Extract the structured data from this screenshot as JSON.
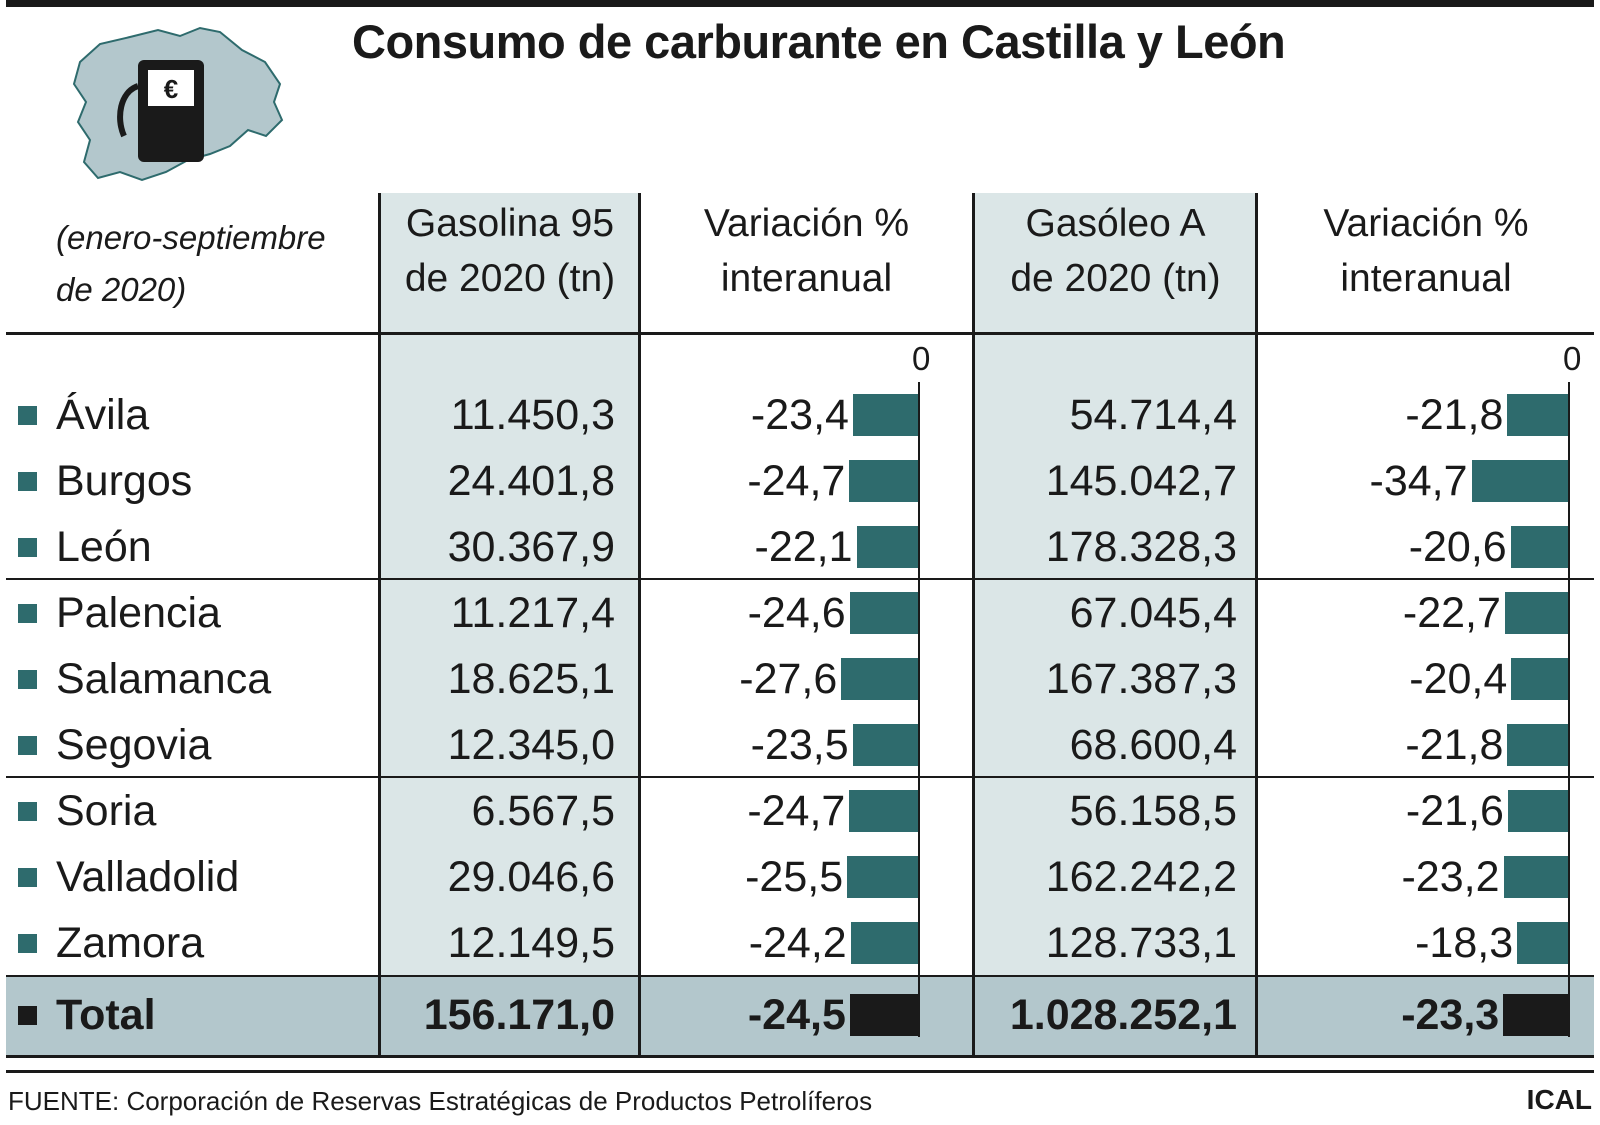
{
  "title": "Consumo de carburante en Castilla y León",
  "subtitle_line1": "(enero-septiembre",
  "subtitle_line2": "de 2020)",
  "logo": {
    "icon": "fuel-pump-icon",
    "symbol": "€"
  },
  "headers": {
    "gasolina_l1": "Gasolina 95",
    "gasolina_l2": "de 2020 (tn)",
    "var1_l1": "Variación %",
    "var1_l2": "interanual",
    "gasoleo_l1": "Gasóleo A",
    "gasoleo_l2": "de 2020 (tn)",
    "var2_l1": "Variación %",
    "var2_l2": "interanual"
  },
  "zero_label": "0",
  "colors": {
    "bar": "#2e6b6d",
    "total_bar": "#1a1a1a",
    "shade": "#dbe6e7",
    "total_band": "#b3c7cc"
  },
  "rows": [
    {
      "province": "Ávila",
      "gasolina": "11.450,3",
      "var_gasolina": "-23,4",
      "gasoleo": "54.714,4",
      "var_gasoleo": "-21,8"
    },
    {
      "province": "Burgos",
      "gasolina": "24.401,8",
      "var_gasolina": "-24,7",
      "gasoleo": "145.042,7",
      "var_gasoleo": "-34,7"
    },
    {
      "province": "León",
      "gasolina": "30.367,9",
      "var_gasolina": "-22,1",
      "gasoleo": "178.328,3",
      "var_gasoleo": "-20,6"
    },
    {
      "province": "Palencia",
      "gasolina": "11.217,4",
      "var_gasolina": "-24,6",
      "gasoleo": "67.045,4",
      "var_gasoleo": "-22,7"
    },
    {
      "province": "Salamanca",
      "gasolina": "18.625,1",
      "var_gasolina": "-27,6",
      "gasoleo": "167.387,3",
      "var_gasoleo": "-20,4"
    },
    {
      "province": "Segovia",
      "gasolina": "12.345,0",
      "var_gasolina": "-23,5",
      "gasoleo": "68.600,4",
      "var_gasoleo": "-21,8"
    },
    {
      "province": "Soria",
      "gasolina": "6.567,5",
      "var_gasolina": "-24,7",
      "gasoleo": "56.158,5",
      "var_gasoleo": "-21,6"
    },
    {
      "province": "Valladolid",
      "gasolina": "29.046,6",
      "var_gasolina": "-25,5",
      "gasoleo": "162.242,2",
      "var_gasoleo": "-23,2"
    },
    {
      "province": "Zamora",
      "gasolina": "12.149,5",
      "var_gasolina": "-24,2",
      "gasoleo": "128.733,1",
      "var_gasoleo": "-18,3"
    }
  ],
  "total": {
    "province": "Total",
    "gasolina": "156.171,0",
    "var_gasolina": "-24,5",
    "gasoleo": "1.028.252,1",
    "var_gasoleo": "-23,3"
  },
  "source": "FUENTE: Corporación de Reservas Estratégicas de Productos Petrolíferos",
  "credit": "ICAL",
  "chart_data": {
    "type": "table",
    "title": "Consumo de carburante en Castilla y León",
    "period": "(enero-septiembre de 2020)",
    "columns": [
      "Gasolina 95 de 2020 (tn)",
      "Variación % interanual",
      "Gasóleo A de 2020 (tn)",
      "Variación % interanual"
    ],
    "categories": [
      "Ávila",
      "Burgos",
      "León",
      "Palencia",
      "Salamanca",
      "Segovia",
      "Soria",
      "Valladolid",
      "Zamora",
      "Total"
    ],
    "series": [
      {
        "name": "Gasolina 95 de 2020 (tn)",
        "values": [
          11450.3,
          24401.8,
          30367.9,
          11217.4,
          18625.1,
          12345.0,
          6567.5,
          29046.6,
          12149.5,
          156171.0
        ]
      },
      {
        "name": "Variación % interanual (Gasolina 95)",
        "values": [
          -23.4,
          -24.7,
          -22.1,
          -24.6,
          -27.6,
          -23.5,
          -24.7,
          -25.5,
          -24.2,
          -24.5
        ]
      },
      {
        "name": "Gasóleo A de 2020 (tn)",
        "values": [
          54714.4,
          145042.7,
          178328.3,
          67045.4,
          167387.3,
          68600.4,
          56158.5,
          162242.2,
          128733.1,
          1028252.1
        ]
      },
      {
        "name": "Variación % interanual (Gasóleo A)",
        "values": [
          -21.8,
          -34.7,
          -20.6,
          -22.7,
          -20.4,
          -21.8,
          -21.6,
          -23.2,
          -18.3,
          -23.3
        ]
      }
    ],
    "bar_axis_zero": 0
  }
}
